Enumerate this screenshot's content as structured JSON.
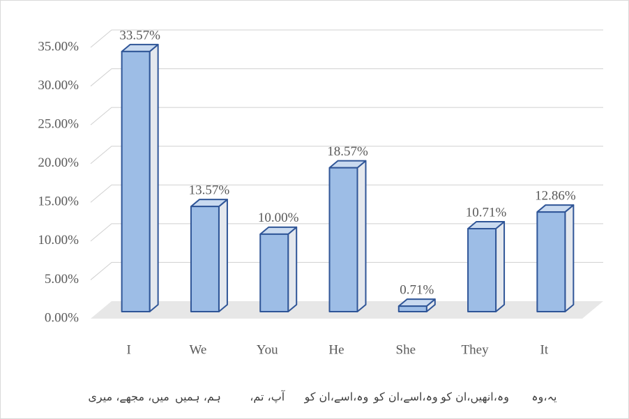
{
  "chart_data": {
    "type": "bar3d",
    "categories": [
      [
        "I",
        "میں، مجھے، میری"
      ],
      [
        "We",
        "ہم، ہمیں"
      ],
      [
        "You",
        "آپ، تم،"
      ],
      [
        "He",
        "وہ،اسے،ان کو"
      ],
      [
        "She",
        "وہ،اسے،ان کو"
      ],
      [
        "They",
        "وہ،انھیں،ان کو"
      ],
      [
        "It",
        "یہ،وہ"
      ]
    ],
    "values": [
      33.57,
      13.57,
      10.0,
      18.57,
      0.71,
      10.71,
      12.86
    ],
    "value_labels": [
      "33.57%",
      "13.57%",
      "10.00%",
      "18.57%",
      "0.71%",
      "10.71%",
      "12.86%"
    ],
    "color": "#9dbde6",
    "edge_color": "#2f5597",
    "ylim": [
      0,
      35
    ],
    "yticks": [
      {
        "value": 0,
        "label": "0.00%"
      },
      {
        "value": 5,
        "label": "5.00%"
      },
      {
        "value": 10,
        "label": "10.00%"
      },
      {
        "value": 15,
        "label": "15.00%"
      },
      {
        "value": 20,
        "label": "20.00%"
      },
      {
        "value": 25,
        "label": "25.00%"
      },
      {
        "value": 30,
        "label": "30.00%"
      },
      {
        "value": 35,
        "label": "35.00%"
      }
    ],
    "grid": true
  }
}
